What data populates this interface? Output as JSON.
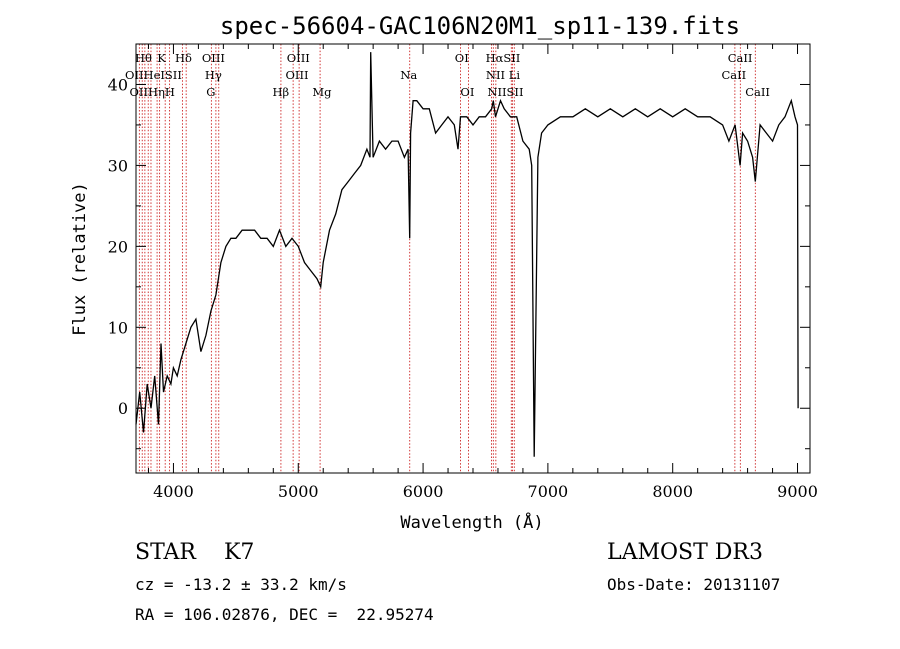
{
  "chart_data": {
    "type": "line",
    "title": "spec-56604-GAC106N20M1_sp11-139.fits",
    "xlabel": "Wavelength (Å)",
    "ylabel": "Flux (relative)",
    "xlim": [
      3700,
      9100
    ],
    "ylim": [
      -8,
      45
    ],
    "xticks": [
      {
        "value": 4000,
        "label": "4000"
      },
      {
        "value": 5000,
        "label": "5000"
      },
      {
        "value": 6000,
        "label": "6000"
      },
      {
        "value": 7000,
        "label": "7000"
      },
      {
        "value": 8000,
        "label": "8000"
      },
      {
        "value": 9000,
        "label": "9000"
      }
    ],
    "yticks": [
      {
        "value": 0,
        "label": "0"
      },
      {
        "value": 10,
        "label": "10"
      },
      {
        "value": 20,
        "label": "20"
      },
      {
        "value": 30,
        "label": "30"
      },
      {
        "value": 40,
        "label": "40"
      }
    ],
    "line_color": "#000000",
    "marker_color": "#cc2222",
    "spectrum": {
      "x": [
        3700,
        3730,
        3760,
        3790,
        3820,
        3850,
        3880,
        3900,
        3920,
        3950,
        3980,
        4000,
        4030,
        4060,
        4100,
        4140,
        4180,
        4220,
        4260,
        4300,
        4340,
        4380,
        4420,
        4460,
        4500,
        4550,
        4600,
        4650,
        4700,
        4750,
        4800,
        4850,
        4900,
        4950,
        5000,
        5050,
        5100,
        5150,
        5180,
        5200,
        5250,
        5300,
        5350,
        5400,
        5450,
        5500,
        5550,
        5575,
        5580,
        5600,
        5650,
        5700,
        5750,
        5800,
        5850,
        5880,
        5893,
        5900,
        5920,
        5950,
        6000,
        6050,
        6100,
        6150,
        6200,
        6250,
        6280,
        6300,
        6350,
        6400,
        6450,
        6500,
        6550,
        6563,
        6580,
        6620,
        6650,
        6700,
        6750,
        6800,
        6850,
        6870,
        6890,
        6920,
        6950,
        7000,
        7100,
        7200,
        7300,
        7400,
        7500,
        7600,
        7700,
        7800,
        7900,
        8000,
        8100,
        8200,
        8300,
        8400,
        8450,
        8500,
        8540,
        8560,
        8600,
        8640,
        8662,
        8700,
        8750,
        8800,
        8850,
        8900,
        8950,
        8980,
        9000,
        9005
      ],
      "y": [
        -2,
        2,
        -3,
        3,
        0,
        4,
        -2,
        8,
        2,
        4,
        3,
        5,
        4,
        6,
        8,
        10,
        11,
        7,
        9,
        12,
        14,
        18,
        20,
        21,
        21,
        22,
        22,
        22,
        21,
        21,
        20,
        22,
        20,
        21,
        20,
        18,
        17,
        16,
        15,
        18,
        22,
        24,
        27,
        28,
        29,
        30,
        32,
        31,
        44,
        31,
        33,
        32,
        33,
        33,
        31,
        32,
        21,
        34,
        38,
        38,
        37,
        37,
        34,
        35,
        36,
        35,
        32,
        36,
        36,
        35,
        36,
        36,
        37,
        38,
        36,
        38,
        37,
        36,
        36,
        33,
        32,
        30,
        -6,
        31,
        34,
        35,
        36,
        36,
        37,
        36,
        37,
        36,
        37,
        36,
        37,
        36,
        37,
        36,
        36,
        35,
        33,
        35,
        30,
        34,
        33,
        31,
        28,
        35,
        34,
        33,
        35,
        36,
        38,
        36,
        35,
        0
      ]
    },
    "lines": [
      {
        "wave": 3727,
        "label": "OII"
      },
      {
        "wave": 3750,
        "label": "Hθ"
      },
      {
        "wave": 3771,
        "label": "OII"
      },
      {
        "wave": 3798,
        "label": "Hη"
      },
      {
        "wave": 3820,
        "label": "HeI"
      },
      {
        "wave": 3869,
        "label": "H"
      },
      {
        "wave": 3889,
        "label": "K"
      },
      {
        "wave": 3934,
        "label": "SII"
      },
      {
        "wave": 3969,
        "label": "H"
      },
      {
        "wave": 4072,
        "label": "SII"
      },
      {
        "wave": 4102,
        "label": "Hδ"
      },
      {
        "wave": 4304,
        "label": "G"
      },
      {
        "wave": 4340,
        "label": "Hγ"
      },
      {
        "wave": 4363,
        "label": "OIII"
      },
      {
        "wave": 4861,
        "label": "Hβ"
      },
      {
        "wave": 4959,
        "label": "OIII"
      },
      {
        "wave": 5007,
        "label": "OIII"
      },
      {
        "wave": 5175,
        "label": "Mg"
      },
      {
        "wave": 5893,
        "label": "Na"
      },
      {
        "wave": 6300,
        "label": "OI"
      },
      {
        "wave": 6364,
        "label": "OI"
      },
      {
        "wave": 6548,
        "label": "NII"
      },
      {
        "wave": 6563,
        "label": "Hα"
      },
      {
        "wave": 6583,
        "label": "NII"
      },
      {
        "wave": 6707,
        "label": "Li"
      },
      {
        "wave": 6716,
        "label": "SII"
      },
      {
        "wave": 6731,
        "label": "SII"
      },
      {
        "wave": 8498,
        "label": "CaII"
      },
      {
        "wave": 8542,
        "label": "CaII"
      },
      {
        "wave": 8662,
        "label": "CaII"
      }
    ],
    "line_label_rows": [
      {
        "text": "Hθ",
        "wave": 3760,
        "row": 0
      },
      {
        "text": "K",
        "wave": 3905,
        "row": 0
      },
      {
        "text": "Hδ",
        "wave": 4080,
        "row": 0
      },
      {
        "text": "OIII",
        "wave": 4320,
        "row": 0
      },
      {
        "text": "OIII",
        "wave": 5000,
        "row": 0
      },
      {
        "text": "OI",
        "wave": 6310,
        "row": 0
      },
      {
        "text": "HαSII",
        "wave": 6640,
        "row": 0
      },
      {
        "text": "CaII",
        "wave": 8540,
        "row": 0
      },
      {
        "text": "OIIHeISII",
        "wave": 3840,
        "row": 1
      },
      {
        "text": "Hγ",
        "wave": 4320,
        "row": 1
      },
      {
        "text": "OIII",
        "wave": 4990,
        "row": 1
      },
      {
        "text": "Na",
        "wave": 5885,
        "row": 1
      },
      {
        "text": "NII Li",
        "wave": 6640,
        "row": 1
      },
      {
        "text": "CaII",
        "wave": 8490,
        "row": 1
      },
      {
        "text": "OIIHηH",
        "wave": 3830,
        "row": 2
      },
      {
        "text": "G",
        "wave": 4300,
        "row": 2
      },
      {
        "text": "Hβ",
        "wave": 4860,
        "row": 2
      },
      {
        "text": "Mg",
        "wave": 5190,
        "row": 2
      },
      {
        "text": "OI",
        "wave": 6355,
        "row": 2
      },
      {
        "text": "NIISII",
        "wave": 6660,
        "row": 2
      },
      {
        "text": "CaII",
        "wave": 8680,
        "row": 2
      }
    ]
  },
  "info": {
    "object": "STAR    K7",
    "survey": "LAMOST DR3",
    "redshift": "cz = -13.2 ± 33.2 km/s",
    "obs_date": "Obs-Date: 20131107",
    "coords": "RA = 106.02876, DEC =  22.95274"
  }
}
